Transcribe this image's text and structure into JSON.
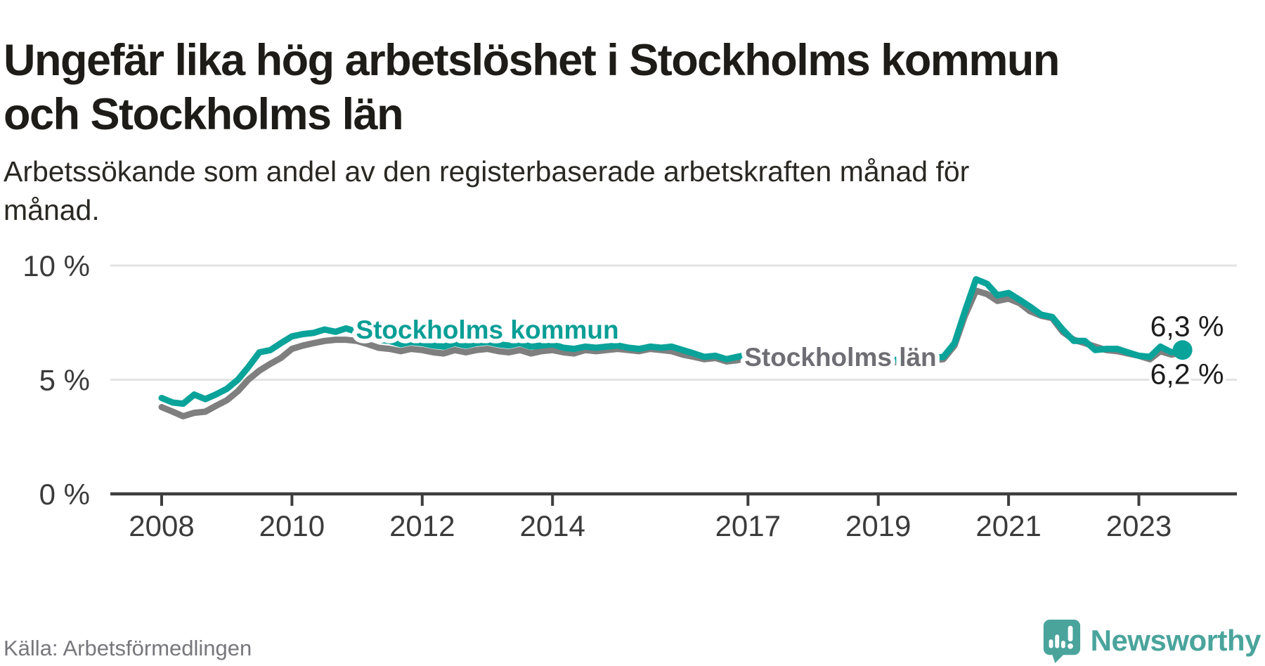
{
  "header": {
    "title_lines": [
      "Ungefär lika hög arbetslöshet i Stockholms kommun",
      "och Stockholms län"
    ],
    "subtitle_lines": [
      "Arbetssökande som andel av den registerbaserade arbetskraften månad för",
      "månad."
    ]
  },
  "footer": {
    "source": "Källa: Arbetsförmedlingen",
    "brand": "Newsworthy"
  },
  "colors": {
    "kommun_line": "#09a39a",
    "kommun_label": "#0a9e96",
    "lan_line": "#7f7f7f",
    "lan_label": "#6e6e74",
    "axis": "#3e3e3e",
    "gridline": "#e3e3e3",
    "value_label": "#1c1c1c",
    "brand_teal": "#4aa49c"
  },
  "chart_data": {
    "type": "line",
    "title": "Ungefär lika hög arbetslöshet i Stockholms kommun och Stockholms län",
    "subtitle": "Arbetssökande som andel av den registerbaserade arbetskraften månad för månad.",
    "unit": "%",
    "xlabel": "",
    "ylabel": "",
    "xlim": [
      2007.2,
      2024.5
    ],
    "ylim": [
      0,
      10.8
    ],
    "grid": "horizontal",
    "legend_position": "on-line-labels",
    "x_tick_years": [
      2008,
      2010,
      2012,
      2014,
      2017,
      2019,
      2021,
      2023
    ],
    "y_ticks": [
      {
        "value": 10,
        "label": "10 %"
      },
      {
        "value": 5,
        "label": "5 %"
      },
      {
        "value": 0,
        "label": "0 %"
      }
    ],
    "series": [
      {
        "name": "Stockholms kommun",
        "color": "#09a39a",
        "label_color": "#0a9e96",
        "label_pos": [
          2013.0,
          7.2
        ],
        "end_label": "6,3 %",
        "end_value": 6.3,
        "has_end_dot": true,
        "values": [
          [
            2008.0,
            4.2
          ],
          [
            2008.17,
            4.0
          ],
          [
            2008.33,
            3.95
          ],
          [
            2008.5,
            4.35
          ],
          [
            2008.67,
            4.15
          ],
          [
            2008.83,
            4.35
          ],
          [
            2009.0,
            4.6
          ],
          [
            2009.17,
            5.0
          ],
          [
            2009.33,
            5.55
          ],
          [
            2009.5,
            6.2
          ],
          [
            2009.67,
            6.3
          ],
          [
            2009.83,
            6.6
          ],
          [
            2010.0,
            6.9
          ],
          [
            2010.17,
            7.0
          ],
          [
            2010.33,
            7.05
          ],
          [
            2010.5,
            7.2
          ],
          [
            2010.67,
            7.1
          ],
          [
            2010.83,
            7.25
          ],
          [
            2011.0,
            7.1
          ],
          [
            2011.17,
            6.9
          ],
          [
            2011.33,
            6.75
          ],
          [
            2011.5,
            6.7
          ],
          [
            2011.67,
            6.55
          ],
          [
            2011.83,
            6.65
          ],
          [
            2012.0,
            6.6
          ],
          [
            2012.17,
            6.5
          ],
          [
            2012.33,
            6.45
          ],
          [
            2012.5,
            6.6
          ],
          [
            2012.67,
            6.5
          ],
          [
            2012.83,
            6.6
          ],
          [
            2013.0,
            6.65
          ],
          [
            2013.17,
            6.55
          ],
          [
            2013.33,
            6.5
          ],
          [
            2013.5,
            6.6
          ],
          [
            2013.67,
            6.45
          ],
          [
            2013.83,
            6.5
          ],
          [
            2014.0,
            6.55
          ],
          [
            2014.17,
            6.4
          ],
          [
            2014.33,
            6.35
          ],
          [
            2014.5,
            6.45
          ],
          [
            2014.67,
            6.4
          ],
          [
            2014.83,
            6.45
          ],
          [
            2015.0,
            6.5
          ],
          [
            2015.17,
            6.4
          ],
          [
            2015.33,
            6.35
          ],
          [
            2015.5,
            6.45
          ],
          [
            2015.67,
            6.4
          ],
          [
            2015.83,
            6.45
          ],
          [
            2016.0,
            6.3
          ],
          [
            2016.17,
            6.15
          ],
          [
            2016.33,
            6.0
          ],
          [
            2016.5,
            6.05
          ],
          [
            2016.67,
            5.9
          ],
          [
            2016.83,
            6.0
          ],
          [
            2017.0,
            6.1
          ],
          [
            2017.17,
            6.0
          ],
          [
            2017.33,
            5.95
          ],
          [
            2017.5,
            6.05
          ],
          [
            2017.67,
            5.95
          ],
          [
            2017.83,
            6.0
          ],
          [
            2018.0,
            6.05
          ],
          [
            2018.17,
            5.95
          ],
          [
            2018.33,
            5.9
          ],
          [
            2018.5,
            6.0
          ],
          [
            2018.67,
            5.9
          ],
          [
            2018.83,
            5.95
          ],
          [
            2019.0,
            6.0
          ],
          [
            2019.17,
            5.9
          ],
          [
            2019.33,
            5.85
          ],
          [
            2019.5,
            5.95
          ],
          [
            2019.67,
            5.9
          ],
          [
            2019.83,
            5.95
          ],
          [
            2020.0,
            6.0
          ],
          [
            2020.17,
            6.6
          ],
          [
            2020.33,
            8.0
          ],
          [
            2020.5,
            9.4
          ],
          [
            2020.67,
            9.2
          ],
          [
            2020.83,
            8.7
          ],
          [
            2021.0,
            8.8
          ],
          [
            2021.17,
            8.5
          ],
          [
            2021.33,
            8.2
          ],
          [
            2021.5,
            7.85
          ],
          [
            2021.67,
            7.75
          ],
          [
            2021.83,
            7.2
          ],
          [
            2022.0,
            6.7
          ],
          [
            2022.17,
            6.7
          ],
          [
            2022.33,
            6.3
          ],
          [
            2022.5,
            6.35
          ],
          [
            2022.67,
            6.35
          ],
          [
            2022.83,
            6.2
          ],
          [
            2023.0,
            6.05
          ],
          [
            2023.17,
            6.0
          ],
          [
            2023.33,
            6.45
          ],
          [
            2023.5,
            6.2
          ],
          [
            2023.67,
            6.3
          ]
        ]
      },
      {
        "name": "Stockholms län",
        "color": "#7f7f7f",
        "label_color": "#6e6e74",
        "label_pos": [
          2018.42,
          6.0
        ],
        "end_label": "6,2 %",
        "end_value": 6.2,
        "has_end_dot": false,
        "values": [
          [
            2008.0,
            3.8
          ],
          [
            2008.17,
            3.6
          ],
          [
            2008.33,
            3.4
          ],
          [
            2008.5,
            3.55
          ],
          [
            2008.67,
            3.6
          ],
          [
            2008.83,
            3.85
          ],
          [
            2009.0,
            4.1
          ],
          [
            2009.17,
            4.5
          ],
          [
            2009.33,
            5.0
          ],
          [
            2009.5,
            5.4
          ],
          [
            2009.67,
            5.7
          ],
          [
            2009.83,
            5.95
          ],
          [
            2010.0,
            6.35
          ],
          [
            2010.17,
            6.5
          ],
          [
            2010.33,
            6.6
          ],
          [
            2010.5,
            6.7
          ],
          [
            2010.67,
            6.75
          ],
          [
            2010.83,
            6.75
          ],
          [
            2011.0,
            6.7
          ],
          [
            2011.17,
            6.55
          ],
          [
            2011.33,
            6.4
          ],
          [
            2011.5,
            6.35
          ],
          [
            2011.67,
            6.25
          ],
          [
            2011.83,
            6.35
          ],
          [
            2012.0,
            6.3
          ],
          [
            2012.17,
            6.2
          ],
          [
            2012.33,
            6.15
          ],
          [
            2012.5,
            6.3
          ],
          [
            2012.67,
            6.2
          ],
          [
            2012.83,
            6.3
          ],
          [
            2013.0,
            6.35
          ],
          [
            2013.17,
            6.25
          ],
          [
            2013.33,
            6.2
          ],
          [
            2013.5,
            6.3
          ],
          [
            2013.67,
            6.15
          ],
          [
            2013.83,
            6.25
          ],
          [
            2014.0,
            6.3
          ],
          [
            2014.17,
            6.2
          ],
          [
            2014.33,
            6.15
          ],
          [
            2014.5,
            6.3
          ],
          [
            2014.67,
            6.25
          ],
          [
            2014.83,
            6.3
          ],
          [
            2015.0,
            6.35
          ],
          [
            2015.17,
            6.3
          ],
          [
            2015.33,
            6.25
          ],
          [
            2015.5,
            6.35
          ],
          [
            2015.67,
            6.3
          ],
          [
            2015.83,
            6.25
          ],
          [
            2016.0,
            6.1
          ],
          [
            2016.17,
            6.0
          ],
          [
            2016.33,
            5.9
          ],
          [
            2016.5,
            5.95
          ],
          [
            2016.67,
            5.8
          ],
          [
            2016.83,
            5.85
          ],
          [
            2017.0,
            5.95
          ],
          [
            2017.17,
            5.9
          ],
          [
            2017.33,
            5.85
          ],
          [
            2017.5,
            5.95
          ],
          [
            2017.67,
            5.85
          ],
          [
            2017.83,
            5.9
          ],
          [
            2018.0,
            5.95
          ],
          [
            2018.17,
            5.85
          ],
          [
            2018.33,
            5.8
          ],
          [
            2018.5,
            5.9
          ],
          [
            2018.67,
            5.8
          ],
          [
            2018.83,
            5.85
          ],
          [
            2019.0,
            5.9
          ],
          [
            2019.17,
            5.8
          ],
          [
            2019.33,
            5.75
          ],
          [
            2019.5,
            5.85
          ],
          [
            2019.67,
            5.8
          ],
          [
            2019.83,
            5.85
          ],
          [
            2020.0,
            5.9
          ],
          [
            2020.17,
            6.5
          ],
          [
            2020.33,
            7.8
          ],
          [
            2020.5,
            8.9
          ],
          [
            2020.67,
            8.75
          ],
          [
            2020.83,
            8.45
          ],
          [
            2021.0,
            8.55
          ],
          [
            2021.17,
            8.35
          ],
          [
            2021.33,
            8.0
          ],
          [
            2021.5,
            7.8
          ],
          [
            2021.67,
            7.7
          ],
          [
            2021.83,
            7.1
          ],
          [
            2022.0,
            6.75
          ],
          [
            2022.17,
            6.6
          ],
          [
            2022.33,
            6.45
          ],
          [
            2022.5,
            6.3
          ],
          [
            2022.67,
            6.25
          ],
          [
            2022.83,
            6.15
          ],
          [
            2023.0,
            6.05
          ],
          [
            2023.17,
            5.9
          ],
          [
            2023.33,
            6.25
          ],
          [
            2023.5,
            6.1
          ],
          [
            2023.67,
            6.2
          ]
        ]
      }
    ]
  }
}
